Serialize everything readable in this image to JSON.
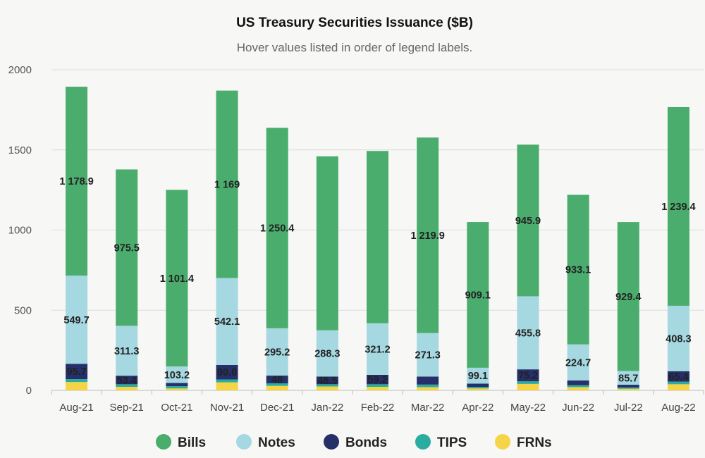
{
  "chart_data": {
    "type": "bar",
    "stacked": true,
    "title": "US Treasury Securities Issuance ($B)",
    "subtitle": "Hover values listed in order of legend labels.",
    "xlabel": "",
    "ylabel": "",
    "ylim": [
      0,
      2000
    ],
    "yticks": [
      "0",
      "500",
      "1000",
      "1500",
      "2000"
    ],
    "grid": true,
    "legend_position": "bottom",
    "categories": [
      "Aug-21",
      "Sep-21",
      "Oct-21",
      "Nov-21",
      "Dec-21",
      "Jan-22",
      "Feb-22",
      "Mar-22",
      "Apr-22",
      "May-22",
      "Jun-22",
      "Jul-22",
      "Aug-22"
    ],
    "series": [
      {
        "name": "FRNs",
        "color": "#f5d547",
        "values": [
          52,
          22,
          12,
          50,
          28,
          24,
          22,
          20,
          12,
          40,
          20,
          10,
          38
        ],
        "labels": [
          "",
          "",
          "",
          "",
          "",
          "",
          "",
          "",
          "",
          "",
          "",
          "",
          ""
        ]
      },
      {
        "name": "TIPS",
        "color": "#2aada0",
        "values": [
          18,
          16,
          14,
          18,
          16,
          14,
          16,
          16,
          10,
          16,
          12,
          8,
          16
        ],
        "labels": [
          "",
          "",
          "",
          "",
          "",
          "",
          "",
          "",
          "",
          "",
          "",
          "",
          ""
        ]
      },
      {
        "name": "Bonds",
        "color": "#25306a",
        "values": [
          95.7,
          53.4,
          20,
          90.8,
          48,
          48.5,
          59.2,
          50,
          20,
          75.2,
          30,
          17,
          65.4
        ],
        "labels": [
          "95.7",
          "53.4",
          "",
          "90.8",
          "48",
          "48.5",
          "59.2",
          "",
          "",
          "75.2",
          "",
          "",
          "65.4"
        ]
      },
      {
        "name": "Notes",
        "color": "#a5d8e1",
        "values": [
          549.7,
          311.3,
          103.2,
          542.1,
          295.2,
          288.3,
          321.2,
          271.3,
          99.1,
          455.8,
          224.7,
          85.7,
          408.3
        ],
        "labels": [
          "549.7",
          "311.3",
          "103.2",
          "542.1",
          "295.2",
          "288.3",
          "321.2",
          "271.3",
          "99.1",
          "455.8",
          "224.7",
          "85.7",
          "408.3"
        ]
      },
      {
        "name": "Bills",
        "color": "#4aad6d",
        "values": [
          1178.9,
          975.5,
          1101.4,
          1169,
          1250.4,
          1085,
          1075,
          1219.9,
          909.1,
          945.9,
          933.1,
          929.4,
          1239.4
        ],
        "labels": [
          "1 178.9",
          "975.5",
          "1 101.4",
          "1 169",
          "1 250.4",
          "",
          "",
          "1 219.9",
          "909.1",
          "945.9",
          "933.1",
          "929.4",
          "1 239.4"
        ]
      }
    ],
    "legend_order": [
      "Bills",
      "Notes",
      "Bonds",
      "TIPS",
      "FRNs"
    ]
  }
}
